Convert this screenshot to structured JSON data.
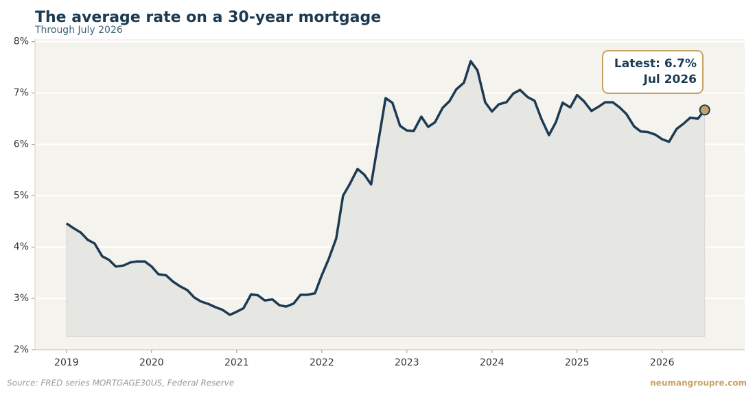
{
  "chart_data": {
    "type": "line",
    "title": "The average rate on a 30-year mortgage",
    "subtitle": "Through July 2026",
    "source": "Source: FRED series MORTGAGE30US, Federal Reserve",
    "credit": "neumangroupre.com",
    "annotation": {
      "line1": "Latest: 6.7%",
      "line2": "Jul 2026"
    },
    "x": [
      2019.0,
      2019.08,
      2019.17,
      2019.25,
      2019.33,
      2019.42,
      2019.5,
      2019.58,
      2019.67,
      2019.75,
      2019.83,
      2019.92,
      2020.0,
      2020.08,
      2020.17,
      2020.25,
      2020.33,
      2020.42,
      2020.5,
      2020.58,
      2020.67,
      2020.75,
      2020.83,
      2020.92,
      2021.0,
      2021.08,
      2021.17,
      2021.25,
      2021.33,
      2021.42,
      2021.5,
      2021.58,
      2021.67,
      2021.75,
      2021.83,
      2021.92,
      2022.0,
      2022.08,
      2022.17,
      2022.25,
      2022.33,
      2022.42,
      2022.5,
      2022.58,
      2022.67,
      2022.75,
      2022.83,
      2022.92,
      2023.0,
      2023.08,
      2023.17,
      2023.25,
      2023.33,
      2023.42,
      2023.5,
      2023.58,
      2023.67,
      2023.75,
      2023.83,
      2023.92,
      2024.0,
      2024.08,
      2024.17,
      2024.25,
      2024.33,
      2024.42,
      2024.5,
      2024.58,
      2024.67,
      2024.75,
      2024.83,
      2024.92,
      2025.0,
      2025.08,
      2025.17,
      2025.25,
      2025.33,
      2025.42,
      2025.5,
      2025.58,
      2025.67,
      2025.75,
      2025.83,
      2025.92,
      2026.0,
      2026.08,
      2026.17,
      2026.25,
      2026.33,
      2026.42,
      2026.5
    ],
    "series": [
      {
        "name": "30-year mortgage rate",
        "color": "#1c3a52",
        "values": [
          4.46,
          4.37,
          4.28,
          4.14,
          4.07,
          3.82,
          3.75,
          3.62,
          3.64,
          3.7,
          3.72,
          3.72,
          3.62,
          3.47,
          3.45,
          3.33,
          3.24,
          3.16,
          3.02,
          2.94,
          2.89,
          2.83,
          2.78,
          2.68,
          2.74,
          2.81,
          3.08,
          3.06,
          2.96,
          2.98,
          2.87,
          2.84,
          2.9,
          3.07,
          3.07,
          3.1,
          3.45,
          3.76,
          4.17,
          5.0,
          5.23,
          5.52,
          5.41,
          5.22,
          6.11,
          6.9,
          6.81,
          6.36,
          6.27,
          6.26,
          6.54,
          6.34,
          6.43,
          6.71,
          6.84,
          7.07,
          7.2,
          7.62,
          7.44,
          6.82,
          6.64,
          6.78,
          6.82,
          6.99,
          7.06,
          6.92,
          6.85,
          6.5,
          6.18,
          6.43,
          6.81,
          6.72,
          6.96,
          6.84,
          6.65,
          6.73,
          6.82,
          6.82,
          6.72,
          6.59,
          6.35,
          6.25,
          6.24,
          6.19,
          6.1,
          6.05,
          6.3,
          6.4,
          6.52,
          6.5,
          6.67
        ]
      }
    ],
    "xlim": [
      2018.63,
      2026.97
    ],
    "xticks": [
      2019,
      2020,
      2021,
      2022,
      2023,
      2024,
      2025,
      2026
    ],
    "ylim": [
      2,
      8.05
    ],
    "yticks": [
      {
        "value": 2,
        "label": "2%"
      },
      {
        "value": 3,
        "label": "3%"
      },
      {
        "value": 4,
        "label": "4%"
      },
      {
        "value": 5,
        "label": "5%"
      },
      {
        "value": 6,
        "label": "6%"
      },
      {
        "value": 7,
        "label": "7%"
      },
      {
        "value": 8,
        "label": "8%"
      }
    ],
    "grid": true,
    "marker_color": "#c8a165"
  }
}
